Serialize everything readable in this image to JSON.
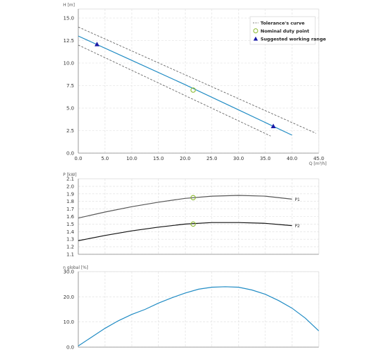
{
  "chart_data": [
    {
      "type": "line",
      "xlabel": "Q [m³/h]",
      "ylabel": "H [m]",
      "xlim": [
        0,
        45
      ],
      "ylim": [
        0,
        16
      ],
      "xticks": [
        "0.0",
        "5.0",
        "10.0",
        "15.0",
        "20.0",
        "25.0",
        "30.0",
        "35.0",
        "40.0",
        "45.0"
      ],
      "yticks": [
        "0.0",
        "2.5",
        "5.0",
        "7.5",
        "10.0",
        "12.5",
        "15.0"
      ],
      "grid": true,
      "legend_position": "top-right",
      "legend": [
        {
          "label": "Tolerance's curve",
          "marker": "dashed-line"
        },
        {
          "label": "Nominal duty point",
          "marker": "open-circle"
        },
        {
          "label": "Suggested working range",
          "marker": "triangle"
        }
      ],
      "series": [
        {
          "role": "main",
          "color": "#1f8bc4",
          "points": [
            [
              0,
              13.0
            ],
            [
              10,
              10.3
            ],
            [
              20,
              7.6
            ],
            [
              30,
              4.8
            ],
            [
              40,
              2.0
            ]
          ]
        },
        {
          "role": "tolerance-upper",
          "color": "#555555",
          "style": "dashed",
          "points": [
            [
              0,
              14.0
            ],
            [
              44.5,
              2.2
            ]
          ]
        },
        {
          "role": "tolerance-lower",
          "color": "#555555",
          "style": "dashed",
          "points": [
            [
              0,
              12.0
            ],
            [
              36,
              1.9
            ]
          ]
        }
      ],
      "duty_point": {
        "x": 21.5,
        "y": 7.0,
        "color": "#8ab92d"
      },
      "working_range": [
        {
          "x": 3.5,
          "y": 12.1
        },
        {
          "x": 36.5,
          "y": 3.0
        }
      ],
      "working_range_color": "#1a1aa6"
    },
    {
      "type": "line",
      "ylabel": "P [kW]",
      "xlim": [
        0,
        45
      ],
      "ylim": [
        1.1,
        2.1
      ],
      "yticks": [
        "1.1",
        "1.2",
        "1.3",
        "1.4",
        "1.5",
        "1.6",
        "1.7",
        "1.8",
        "1.9",
        "2.0",
        "2.1"
      ],
      "grid": true,
      "series": [
        {
          "name": "P1",
          "color": "#555555",
          "points": [
            [
              0,
              1.58
            ],
            [
              5,
              1.66
            ],
            [
              10,
              1.73
            ],
            [
              15,
              1.79
            ],
            [
              20,
              1.84
            ],
            [
              25,
              1.87
            ],
            [
              30,
              1.88
            ],
            [
              35,
              1.87
            ],
            [
              40,
              1.83
            ]
          ]
        },
        {
          "name": "P2",
          "color": "#111111",
          "points": [
            [
              0,
              1.28
            ],
            [
              5,
              1.35
            ],
            [
              10,
              1.41
            ],
            [
              15,
              1.46
            ],
            [
              20,
              1.5
            ],
            [
              25,
              1.52
            ],
            [
              30,
              1.52
            ],
            [
              35,
              1.51
            ],
            [
              40,
              1.48
            ]
          ]
        }
      ],
      "duty_points": [
        {
          "x": 21.5,
          "y": 1.85
        },
        {
          "x": 21.5,
          "y": 1.5
        }
      ],
      "duty_color": "#8ab92d"
    },
    {
      "type": "line",
      "ylabel": "η global [%]",
      "xlim": [
        0,
        45
      ],
      "ylim": [
        0,
        30
      ],
      "yticks": [
        "0.0",
        "10.0",
        "20.0",
        "30.0"
      ],
      "grid": true,
      "series": [
        {
          "color": "#1f8bc4",
          "points": [
            [
              0,
              0.5
            ],
            [
              2.5,
              4.0
            ],
            [
              5,
              7.5
            ],
            [
              7.5,
              10.5
            ],
            [
              10,
              13.0
            ],
            [
              12.5,
              15.0
            ],
            [
              15,
              17.5
            ],
            [
              17.5,
              19.6
            ],
            [
              20,
              21.5
            ],
            [
              22.5,
              23.0
            ],
            [
              25,
              23.8
            ],
            [
              27.5,
              24.0
            ],
            [
              30,
              23.8
            ],
            [
              32.5,
              22.7
            ],
            [
              35,
              21.0
            ],
            [
              37.5,
              18.5
            ],
            [
              40,
              15.5
            ],
            [
              42.5,
              11.5
            ],
            [
              45,
              6.5
            ]
          ]
        }
      ]
    }
  ]
}
